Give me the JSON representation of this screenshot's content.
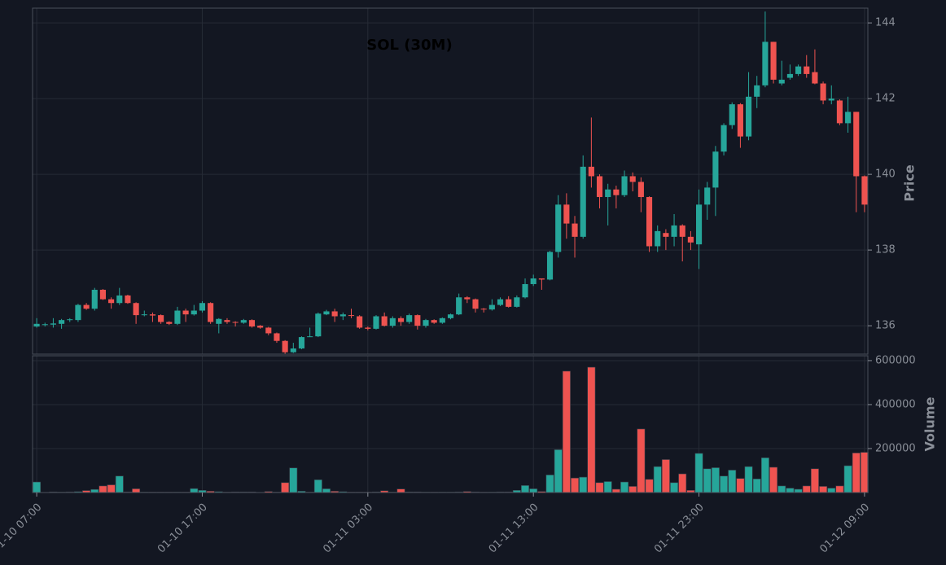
{
  "chart_data": {
    "type": "candlestick",
    "title": "SOL (30M)",
    "ylabel": "Price",
    "up_color": "#26a69a",
    "down_color": "#ef5350",
    "grid": true,
    "ylim": [
      135.25,
      144.39
    ],
    "yticks": [
      136,
      138,
      140,
      142,
      144
    ],
    "categories": [
      "01-10 07:00",
      null,
      null,
      null,
      null,
      null,
      null,
      null,
      null,
      null,
      null,
      null,
      null,
      null,
      null,
      null,
      null,
      null,
      null,
      null,
      "01-10 17:00",
      null,
      null,
      null,
      null,
      null,
      null,
      null,
      null,
      null,
      null,
      null,
      null,
      null,
      null,
      null,
      null,
      null,
      null,
      null,
      "01-11 03:00",
      null,
      null,
      null,
      null,
      null,
      null,
      null,
      null,
      null,
      null,
      null,
      null,
      null,
      null,
      null,
      null,
      null,
      null,
      null,
      "01-11 13:00",
      null,
      null,
      null,
      null,
      null,
      null,
      null,
      null,
      null,
      null,
      null,
      null,
      null,
      null,
      null,
      null,
      null,
      null,
      null,
      "01-11 23:00",
      null,
      null,
      null,
      null,
      null,
      null,
      null,
      null,
      null,
      null,
      null,
      null,
      null,
      null,
      null,
      null,
      null,
      null,
      null,
      "01-12 09:00"
    ],
    "open": [
      135.98,
      136.02,
      136.03,
      136.05,
      136.15,
      136.15,
      136.55,
      136.45,
      136.95,
      136.7,
      136.6,
      136.8,
      136.6,
      136.28,
      136.3,
      136.28,
      136.1,
      136.05,
      136.4,
      136.3,
      136.4,
      136.6,
      136.05,
      136.15,
      136.1,
      136.08,
      136.15,
      136.0,
      135.95,
      135.8,
      135.6,
      135.3,
      135.4,
      135.7,
      135.72,
      136.3,
      136.38,
      136.25,
      136.28,
      136.25,
      135.95,
      135.92,
      136.25,
      136.0,
      136.2,
      136.1,
      136.28,
      136.0,
      136.15,
      136.08,
      136.2,
      136.3,
      136.75,
      136.7,
      136.45,
      136.43,
      136.55,
      136.7,
      136.5,
      136.75,
      137.1,
      137.25,
      137.22,
      137.95,
      139.2,
      138.7,
      138.35,
      140.2,
      139.95,
      139.4,
      139.6,
      139.45,
      139.95,
      139.8,
      139.4,
      138.1,
      138.45,
      138.35,
      138.65,
      138.35,
      138.15,
      139.2,
      139.65,
      140.6,
      141.3,
      141.85,
      141.0,
      142.05,
      142.35,
      143.5,
      142.4,
      142.55,
      142.65,
      142.85,
      142.7,
      142.4,
      141.95,
      141.95,
      141.35,
      141.65,
      139.95
    ],
    "high": [
      136.2,
      136.08,
      136.2,
      136.18,
      136.2,
      136.58,
      136.6,
      137.0,
      136.97,
      136.75,
      137.0,
      136.82,
      136.62,
      136.4,
      136.35,
      136.3,
      136.12,
      136.5,
      136.45,
      136.55,
      136.65,
      136.62,
      136.2,
      136.2,
      136.12,
      136.18,
      136.17,
      136.02,
      135.97,
      135.82,
      135.62,
      135.55,
      135.72,
      135.95,
      136.35,
      136.42,
      136.45,
      136.35,
      136.45,
      136.28,
      135.98,
      136.28,
      136.35,
      136.25,
      136.25,
      136.32,
      136.3,
      136.18,
      136.17,
      136.22,
      136.32,
      136.85,
      136.78,
      136.72,
      136.47,
      136.7,
      136.75,
      136.78,
      136.8,
      137.25,
      137.35,
      137.25,
      137.98,
      139.45,
      139.5,
      138.9,
      140.5,
      141.5,
      140.0,
      139.75,
      139.7,
      140.1,
      140.05,
      139.92,
      139.42,
      138.65,
      138.55,
      138.95,
      138.68,
      138.5,
      139.6,
      139.8,
      140.75,
      141.35,
      141.9,
      141.88,
      142.7,
      142.6,
      144.3,
      143.5,
      143.0,
      142.9,
      142.9,
      143.15,
      143.3,
      142.45,
      142.35,
      141.98,
      142.05,
      141.65,
      139.97
    ],
    "low": [
      135.95,
      135.98,
      135.95,
      135.92,
      136.1,
      136.1,
      136.42,
      136.4,
      136.68,
      136.45,
      136.55,
      136.58,
      136.05,
      136.25,
      136.1,
      136.05,
      136.02,
      136.02,
      136.1,
      136.27,
      136.35,
      136.05,
      135.8,
      136.05,
      135.98,
      136.05,
      135.95,
      135.92,
      135.75,
      135.55,
      135.25,
      135.28,
      135.38,
      135.7,
      135.7,
      136.28,
      136.1,
      136.15,
      136.2,
      135.92,
      135.88,
      135.9,
      135.98,
      135.95,
      136.0,
      136.05,
      135.9,
      135.95,
      136.05,
      136.05,
      136.17,
      136.28,
      136.6,
      136.35,
      136.35,
      136.4,
      136.52,
      136.48,
      136.48,
      136.72,
      137.05,
      136.95,
      137.2,
      137.8,
      138.3,
      137.8,
      138.3,
      139.65,
      139.1,
      138.65,
      139.1,
      139.4,
      139.55,
      139.0,
      137.95,
      137.95,
      138.0,
      138.1,
      137.7,
      138.0,
      137.5,
      138.8,
      138.9,
      140.5,
      141.2,
      140.7,
      140.9,
      141.75,
      142.3,
      142.4,
      142.35,
      142.5,
      142.6,
      142.55,
      142.38,
      141.85,
      141.85,
      141.3,
      141.1,
      139.0,
      139.0
    ],
    "close": [
      136.05,
      136.04,
      136.06,
      136.15,
      136.17,
      136.55,
      136.45,
      136.95,
      136.7,
      136.6,
      136.8,
      136.6,
      136.28,
      136.3,
      136.27,
      136.1,
      136.05,
      136.4,
      136.3,
      136.4,
      136.6,
      136.1,
      136.18,
      136.1,
      136.08,
      136.15,
      135.98,
      135.95,
      135.8,
      135.6,
      135.3,
      135.4,
      135.7,
      135.72,
      136.32,
      136.38,
      136.25,
      136.3,
      136.26,
      135.95,
      135.92,
      136.25,
      136.0,
      136.2,
      136.1,
      136.28,
      136.0,
      136.15,
      136.08,
      136.2,
      136.3,
      136.75,
      136.7,
      136.45,
      136.43,
      136.55,
      136.7,
      136.5,
      136.75,
      137.1,
      137.25,
      137.22,
      137.95,
      139.2,
      138.7,
      138.35,
      140.2,
      139.95,
      139.4,
      139.6,
      139.45,
      139.95,
      139.8,
      139.4,
      138.1,
      138.5,
      138.35,
      138.65,
      138.35,
      138.2,
      139.2,
      139.65,
      140.6,
      141.3,
      141.85,
      141.0,
      142.05,
      142.35,
      143.5,
      142.5,
      142.5,
      142.65,
      142.85,
      142.65,
      142.4,
      141.95,
      142.0,
      141.35,
      141.65,
      139.95,
      139.2
    ],
    "volume": {
      "ylabel": "Volume",
      "ylim": [
        0,
        622000
      ],
      "yticks": [
        200000,
        400000,
        600000
      ],
      "values": [
        48000,
        1000,
        3000,
        2000,
        3000,
        4000,
        9000,
        14000,
        30000,
        35000,
        75000,
        3000,
        17000,
        2000,
        2000,
        2000,
        2000,
        2000,
        2000,
        18000,
        10000,
        6000,
        4000,
        2000,
        3000,
        3000,
        3000,
        1000,
        5000,
        2000,
        45000,
        112000,
        6000,
        2000,
        58000,
        17000,
        6000,
        4000,
        2000,
        2000,
        2000,
        3000,
        8000,
        2000,
        16000,
        3000,
        3000,
        2000,
        2000,
        2000,
        2000,
        3000,
        5000,
        3000,
        2000,
        2000,
        3000,
        3000,
        10000,
        32000,
        17000,
        5000,
        80000,
        195000,
        552000,
        66000,
        70000,
        570000,
        45000,
        50000,
        15000,
        48000,
        28000,
        289000,
        60000,
        118000,
        150000,
        45000,
        85000,
        10000,
        178000,
        108000,
        113000,
        75000,
        102000,
        64000,
        118000,
        62000,
        158000,
        115000,
        30000,
        20000,
        15000,
        30000,
        108000,
        28000,
        20000,
        30000,
        122000,
        180000,
        183000
      ]
    }
  }
}
